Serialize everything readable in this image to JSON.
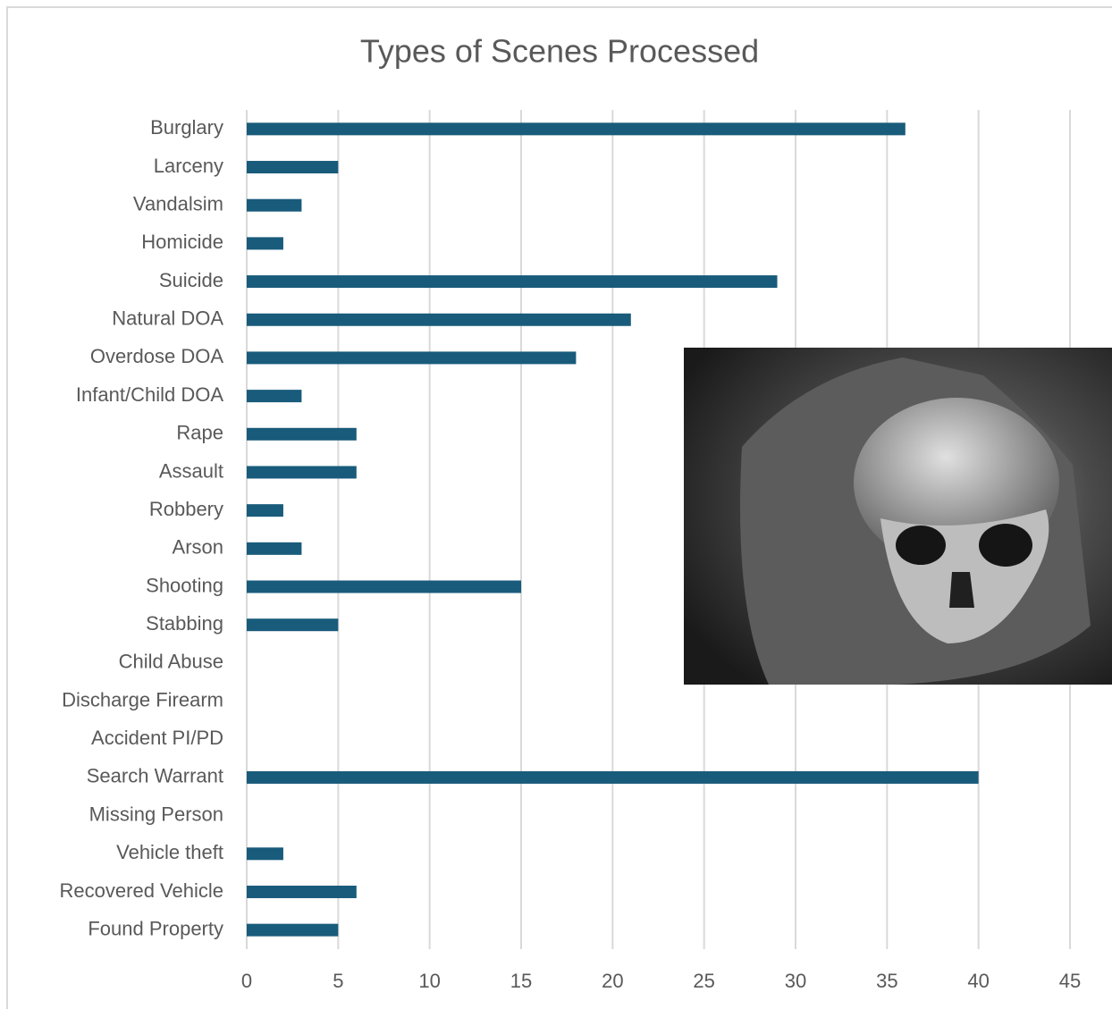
{
  "chart_data": {
    "type": "bar",
    "orientation": "horizontal",
    "title": "Types of Scenes Processed",
    "categories": [
      "Burglary",
      "Larceny",
      "Vandalsim",
      "Homicide",
      "Suicide",
      "Natural DOA",
      "Overdose DOA",
      "Infant/Child DOA",
      "Rape",
      "Assault",
      "Robbery",
      "Arson",
      "Shooting",
      "Stabbing",
      "Child Abuse",
      "Discharge Firearm",
      "Accident PI/PD",
      "Search Warrant",
      "Missing Person",
      "Vehicle theft",
      "Recovered Vehicle",
      "Found Property"
    ],
    "values": [
      36,
      5,
      3,
      2,
      29,
      21,
      18,
      3,
      6,
      6,
      2,
      3,
      15,
      5,
      0,
      0,
      0,
      40,
      0,
      2,
      6,
      5
    ],
    "color": "#195b7b",
    "xlim": [
      0,
      45
    ],
    "xticks": [
      0,
      5,
      10,
      15,
      20,
      25,
      30,
      35,
      40,
      45
    ],
    "grid": true
  }
}
